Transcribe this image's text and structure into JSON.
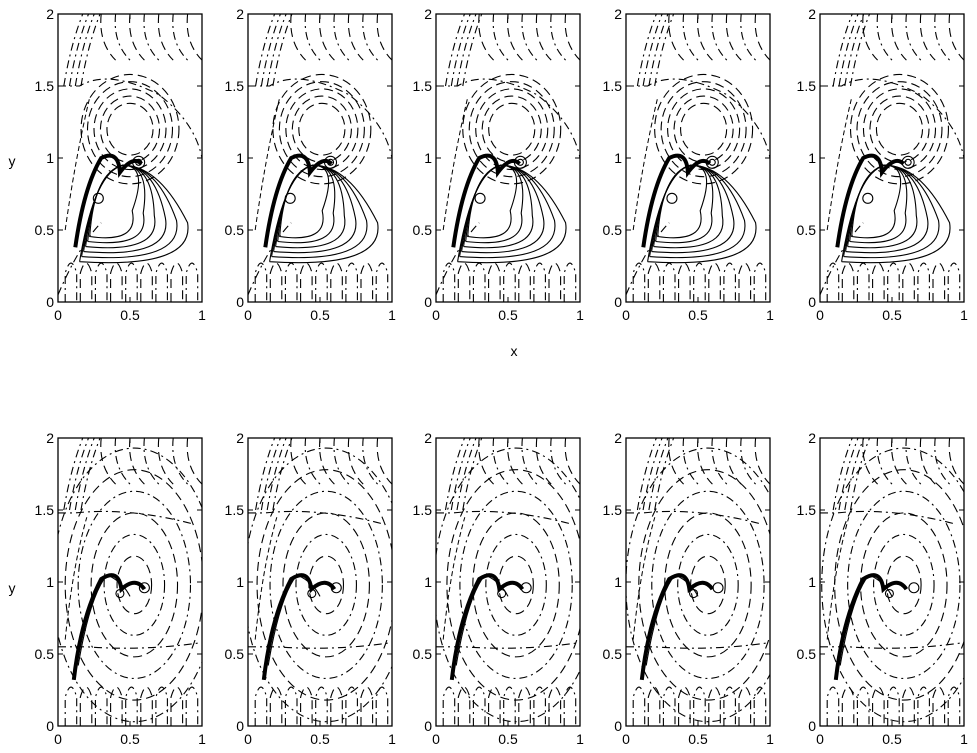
{
  "figure": {
    "row_ylabels": [
      "y",
      "y"
    ],
    "shared_xlabel": "x"
  },
  "chart_data": {
    "type": "contour",
    "rows": 2,
    "cols": 5,
    "xlim": [
      0,
      1
    ],
    "ylim": [
      0,
      2
    ],
    "x_ticks": [
      0,
      0.5,
      1
    ],
    "y_ticks": [
      0,
      0.5,
      1,
      1.5,
      2
    ],
    "x_tick_labels": [
      "0",
      "0.5",
      "1"
    ],
    "y_tick_labels": [
      "0",
      "0.5",
      "1",
      "1.5",
      "2"
    ],
    "line_styles": [
      "solid",
      "dashed",
      "dash-dot"
    ],
    "xlabel": "x",
    "ylabel": "y"
  }
}
